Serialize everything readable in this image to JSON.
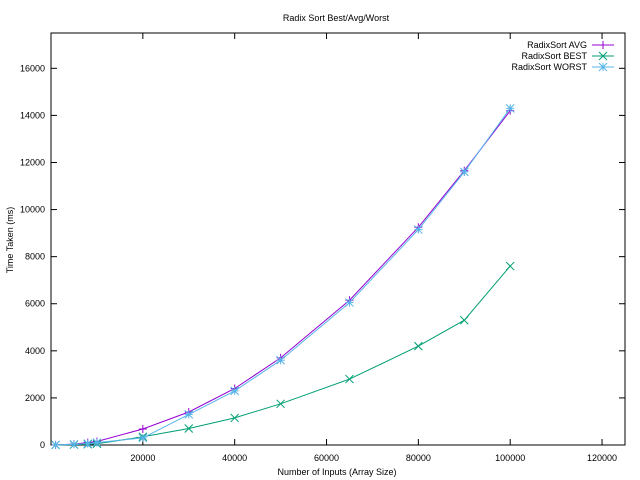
{
  "chart_data": {
    "type": "line",
    "title": "Radix Sort Best/Avg/Worst",
    "xlabel": "Number of Inputs (Array Size)",
    "ylabel": "Time Taken (ms)",
    "xlim": [
      0,
      125000
    ],
    "ylim": [
      0,
      17500
    ],
    "xticks": [
      20000,
      40000,
      60000,
      80000,
      100000,
      120000
    ],
    "yticks": [
      0,
      2000,
      4000,
      6000,
      8000,
      10000,
      12000,
      14000,
      16000
    ],
    "grid": false,
    "legend_position": "top-right",
    "series": [
      {
        "name": "RadixSort AVG",
        "color": "#9400d3",
        "marker": "plus",
        "x": [
          1000,
          5000,
          8000,
          10000,
          20000,
          30000,
          40000,
          50000,
          65000,
          80000,
          90000,
          100000
        ],
        "y": [
          5,
          40,
          100,
          150,
          680,
          1400,
          2400,
          3700,
          6150,
          9250,
          11650,
          14200
        ]
      },
      {
        "name": "RadixSort BEST",
        "color": "#009e73",
        "marker": "cross",
        "x": [
          1000,
          5000,
          8000,
          10000,
          20000,
          30000,
          40000,
          50000,
          65000,
          80000,
          90000,
          100000
        ],
        "y": [
          2,
          15,
          30,
          50,
          350,
          700,
          1150,
          1750,
          2800,
          4200,
          5300,
          7600
        ]
      },
      {
        "name": "RadixSort WORST",
        "color": "#56b4e9",
        "marker": "star",
        "x": [
          1000,
          5000,
          8000,
          10000,
          20000,
          30000,
          40000,
          50000,
          65000,
          80000,
          90000,
          100000
        ],
        "y": [
          5,
          30,
          60,
          100,
          300,
          1300,
          2300,
          3600,
          6050,
          9150,
          11600,
          14300
        ]
      }
    ]
  }
}
